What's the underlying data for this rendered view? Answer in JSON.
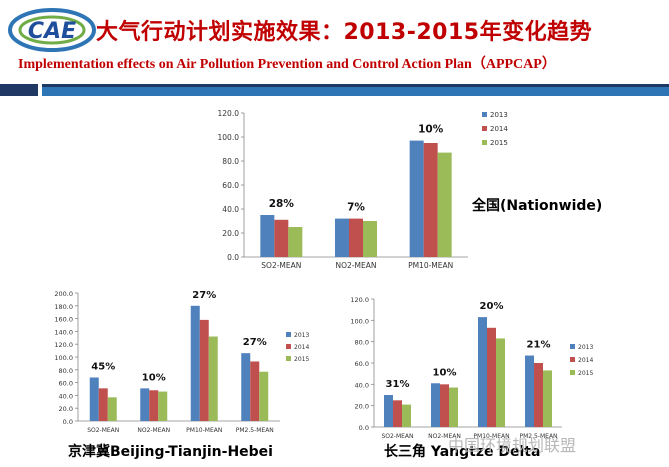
{
  "header": {
    "logo_text": "CAE",
    "title_cn": "大气行动计划实施效果：2013-2015年变化趋势",
    "title_en": "Implementation effects on Air Pollution Prevention and Control Action Plan（APPCAP）"
  },
  "colors": {
    "2013": "#4f81bd",
    "2014": "#c0504d",
    "2015": "#9bbb59",
    "title_red": "#c00000",
    "divider_navy": "#1f3864",
    "divider_blue": "#2e75b6"
  },
  "watermark": "中国环境规划联盟",
  "chart_data": [
    {
      "type": "bar",
      "label": "全国(Nationwide)",
      "categories": [
        "SO2-MEAN",
        "NO2-MEAN",
        "PM10-MEAN"
      ],
      "series": [
        {
          "name": "2013",
          "values": [
            35,
            32,
            97
          ]
        },
        {
          "name": "2014",
          "values": [
            31,
            32,
            95
          ]
        },
        {
          "name": "2015",
          "values": [
            25,
            30,
            87
          ]
        }
      ],
      "annotations": [
        "28%",
        "7%",
        "10%"
      ],
      "ylim": [
        0,
        120
      ],
      "yticks": [
        "0.0",
        "20.0",
        "40.0",
        "60.0",
        "80.0",
        "100.0",
        "120.0"
      ],
      "legend": "top-right"
    },
    {
      "type": "bar",
      "label": "京津冀Beijing-Tianjin-Hebei",
      "categories": [
        "SO2-MEAN",
        "NO2-MEAN",
        "PM10-MEAN",
        "PM2.5-MEAN"
      ],
      "series": [
        {
          "name": "2013",
          "values": [
            68,
            51,
            180,
            106
          ]
        },
        {
          "name": "2014",
          "values": [
            51,
            48,
            158,
            93
          ]
        },
        {
          "name": "2015",
          "values": [
            37,
            46,
            132,
            77
          ]
        }
      ],
      "annotations": [
        "45%",
        "10%",
        "27%",
        "27%"
      ],
      "ylim": [
        0,
        200
      ],
      "yticks": [
        "0.0",
        "20.0",
        "40.0",
        "60.0",
        "80.0",
        "100.0",
        "120.0",
        "140.0",
        "160.0",
        "180.0",
        "200.0"
      ],
      "legend": "right"
    },
    {
      "type": "bar",
      "label": "长三角 Yangtze Delta",
      "categories": [
        "SO2-MEAN",
        "NO2-MEAN",
        "PM10-MEAN",
        "PM2.5-MEAN"
      ],
      "series": [
        {
          "name": "2013",
          "values": [
            30,
            41,
            103,
            67
          ]
        },
        {
          "name": "2014",
          "values": [
            25,
            40,
            93,
            60
          ]
        },
        {
          "name": "2015",
          "values": [
            21,
            37,
            83,
            53
          ]
        }
      ],
      "annotations": [
        "31%",
        "10%",
        "20%",
        "21%"
      ],
      "ylim": [
        0,
        120
      ],
      "yticks": [
        "0.0",
        "20.0",
        "40.0",
        "60.0",
        "80.0",
        "100.0",
        "120.0"
      ],
      "legend": "right"
    }
  ]
}
